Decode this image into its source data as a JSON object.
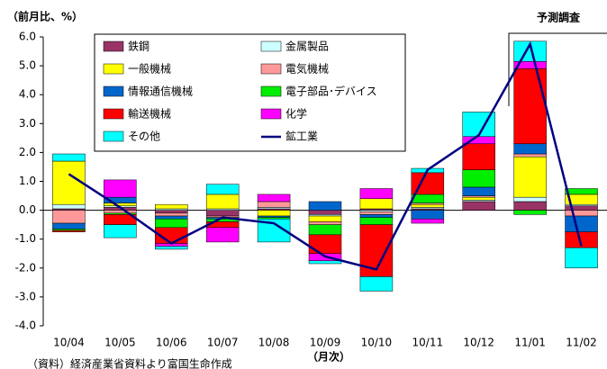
{
  "chart_data": {
    "type": "bar",
    "y_label": "（前月比、%）",
    "x_label": "（月次）",
    "source": "（資料）経済産業省資料より富国生命作成",
    "annotation": "予測調査",
    "categories": [
      "10/04",
      "10/05",
      "10/06",
      "10/07",
      "10/08",
      "10/09",
      "10/10",
      "10/11",
      "10/12",
      "11/01",
      "11/02"
    ],
    "ylim": [
      -4.0,
      6.0
    ],
    "yticks": [
      {
        "value": -4,
        "label": "-4.0"
      },
      {
        "value": -3,
        "label": "-3.0"
      },
      {
        "value": -2,
        "label": "-2.0"
      },
      {
        "value": -1,
        "label": "-1.0"
      },
      {
        "value": 0,
        "label": "0.0"
      },
      {
        "value": 1,
        "label": "1.0"
      },
      {
        "value": 2,
        "label": "2.0"
      },
      {
        "value": 3,
        "label": "3.0"
      },
      {
        "value": 4,
        "label": "4.0"
      },
      {
        "value": 5,
        "label": "5.0"
      },
      {
        "value": 6,
        "label": "6.0"
      }
    ],
    "grid": false,
    "series": [
      {
        "name": "鉄鋼",
        "color": "#993366",
        "values": [
          0.05,
          0.1,
          -0.1,
          -0.2,
          0.05,
          -0.15,
          0.05,
          0.05,
          0.3,
          0.3,
          0.15
        ]
      },
      {
        "name": "金属製品",
        "color": "#ccffff",
        "values": [
          0.15,
          0.05,
          0.05,
          0.05,
          0.05,
          -0.05,
          -0.05,
          0.05,
          0.05,
          0.15,
          0.05
        ]
      },
      {
        "name": "一般機械",
        "color": "#ffff00",
        "values": [
          1.5,
          0.1,
          0.15,
          0.5,
          -0.2,
          -0.2,
          0.35,
          0.1,
          0.1,
          1.4,
          0.35
        ]
      },
      {
        "name": "電気機械",
        "color": "#ff9999",
        "values": [
          -0.45,
          -0.1,
          -0.1,
          -0.05,
          0.2,
          -0.1,
          -0.1,
          0.05,
          0.05,
          0.1,
          -0.2
        ]
      },
      {
        "name": "情報通信機械",
        "color": "#0066cc",
        "values": [
          -0.2,
          0.2,
          -0.1,
          -0.05,
          -0.05,
          0.3,
          -0.1,
          -0.3,
          0.3,
          0.35,
          -0.55
        ]
      },
      {
        "name": "電子部品･デバイス",
        "color": "#00ee00",
        "values": [
          -0.05,
          -0.05,
          -0.3,
          -0.1,
          -0.05,
          -0.35,
          -0.25,
          0.3,
          0.6,
          -0.15,
          0.2
        ]
      },
      {
        "name": "輸送機械",
        "color": "#ff0000",
        "values": [
          -0.05,
          -0.35,
          -0.55,
          -0.2,
          0.0,
          -0.65,
          -1.8,
          0.75,
          0.9,
          2.6,
          -0.55
        ]
      },
      {
        "name": "化学",
        "color": "#ff00ff",
        "values": [
          0.0,
          0.6,
          -0.1,
          -0.5,
          0.25,
          -0.25,
          0.35,
          -0.15,
          0.25,
          0.25,
          0.0
        ]
      },
      {
        "name": "その他",
        "color": "#00ffff",
        "values": [
          0.25,
          -0.45,
          -0.1,
          0.35,
          -0.8,
          -0.1,
          -0.5,
          0.15,
          0.85,
          0.7,
          -0.7
        ]
      },
      {
        "name": "鉱工業",
        "color": "#000080",
        "type": "line",
        "values": [
          1.25,
          0.1,
          -1.15,
          -0.25,
          -0.45,
          -1.6,
          -2.05,
          1.4,
          2.6,
          5.75,
          -1.25
        ]
      }
    ]
  }
}
